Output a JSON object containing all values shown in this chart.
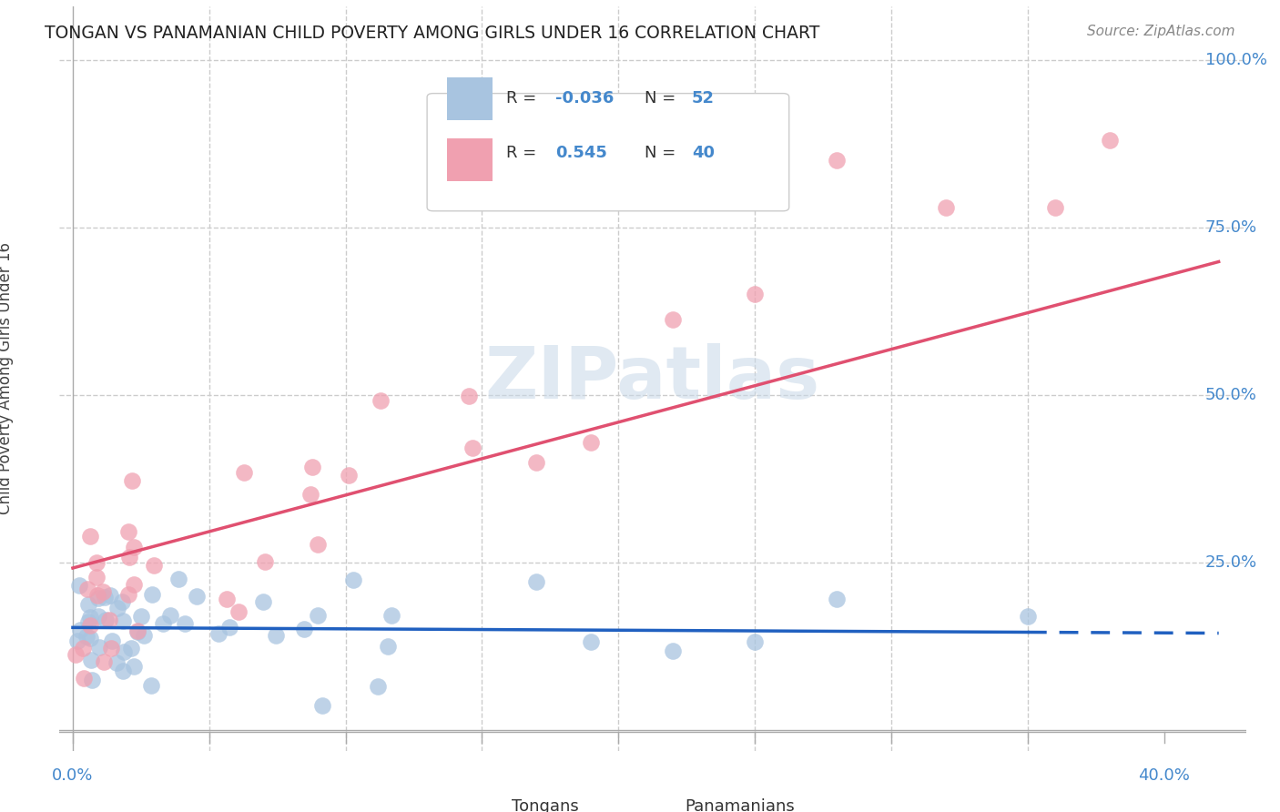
{
  "title": "TONGAN VS PANAMANIAN CHILD POVERTY AMONG GIRLS UNDER 16 CORRELATION CHART",
  "source": "Source: ZipAtlas.com",
  "ylabel": "Child Poverty Among Girls Under 16",
  "background_color": "#ffffff",
  "grid_color": "#cccccc",
  "watermark": "ZIPatlas",
  "tongans_color": "#a8c4e0",
  "panamanians_color": "#f0a0b0",
  "tongans_line_color": "#2060c0",
  "panamanians_line_color": "#e05070",
  "R_tongans": -0.036,
  "N_tongans": 52,
  "R_panamanians": 0.545,
  "N_panamanians": 40
}
